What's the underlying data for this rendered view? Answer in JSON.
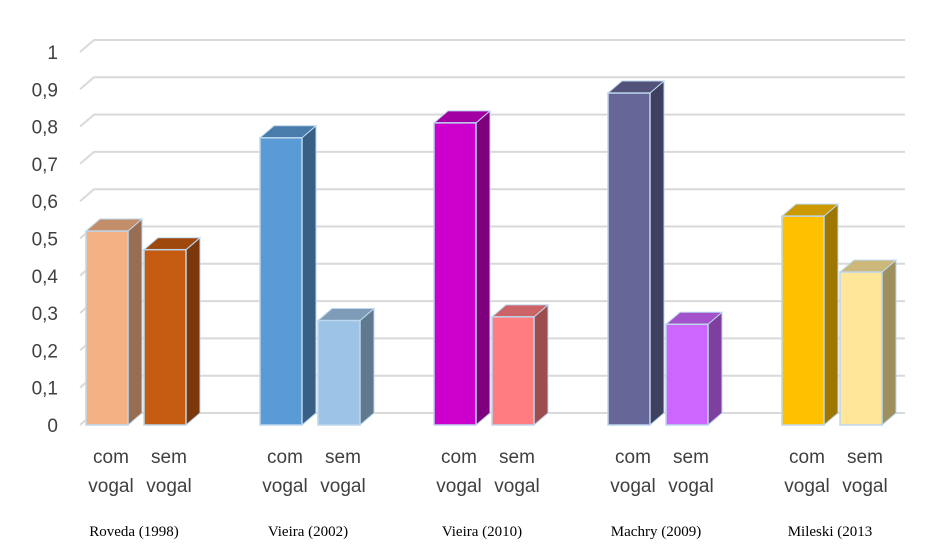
{
  "chart_data": {
    "type": "bar",
    "ylim": [
      0,
      1
    ],
    "yticks": [
      "0",
      "0,1",
      "0,2",
      "0,3",
      "0,4",
      "0,5",
      "0,6",
      "0,7",
      "0,8",
      "0,9",
      "1"
    ],
    "grid": true,
    "groups": [
      {
        "label": "Roveda (1998)",
        "bars": [
          {
            "category": [
              "com",
              "vogal"
            ],
            "value": 0.52,
            "color": "#f4b183"
          },
          {
            "category": [
              "sem",
              "vogal"
            ],
            "value": 0.47,
            "color": "#c55a11"
          }
        ]
      },
      {
        "label": "Vieira (2002)",
        "bars": [
          {
            "category": [
              "com",
              "vogal"
            ],
            "value": 0.77,
            "color": "#5b9bd5"
          },
          {
            "category": [
              "sem",
              "vogal"
            ],
            "value": 0.28,
            "color": "#9dc3e6"
          }
        ]
      },
      {
        "label": "Vieira (2010)",
        "bars": [
          {
            "category": [
              "com",
              "vogal"
            ],
            "value": 0.81,
            "color": "#cc00cc"
          },
          {
            "category": [
              "sem",
              "vogal"
            ],
            "value": 0.29,
            "color": "#ff7c80"
          }
        ]
      },
      {
        "label": "Machry (2009)",
        "bars": [
          {
            "category": [
              "com",
              "vogal"
            ],
            "value": 0.89,
            "color": "#666699"
          },
          {
            "category": [
              "sem",
              "vogal"
            ],
            "value": 0.27,
            "color": "#cc66ff"
          }
        ]
      },
      {
        "label": "Mileski (2013",
        "bars": [
          {
            "category": [
              "com",
              "vogal"
            ],
            "value": 0.56,
            "color": "#ffc000"
          },
          {
            "category": [
              "sem",
              "vogal"
            ],
            "value": 0.41,
            "color": "#ffe699"
          }
        ]
      }
    ]
  }
}
